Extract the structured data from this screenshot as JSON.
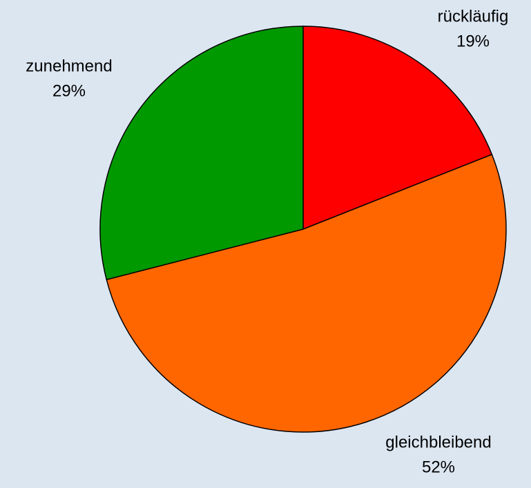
{
  "chart_data": {
    "type": "pie",
    "categories": [
      "rückläufig",
      "gleichbleibend",
      "zunehmend"
    ],
    "values": [
      19,
      52,
      29
    ],
    "value_labels": [
      "19%",
      "52%",
      "29%"
    ],
    "colors": [
      "#ff0000",
      "#ff6600",
      "#009900"
    ]
  }
}
